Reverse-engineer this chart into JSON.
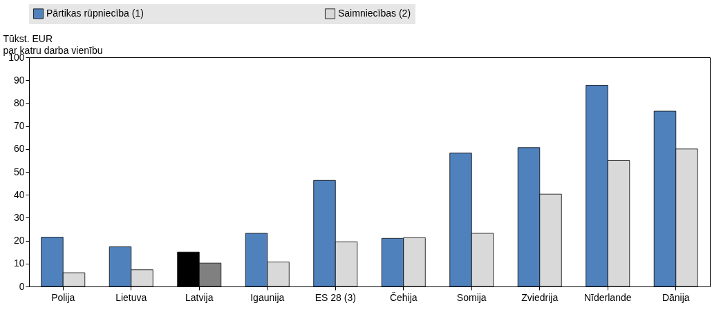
{
  "chart_data": {
    "type": "bar",
    "ylabel": "Tūkst. EUR\npar katru darba vienību",
    "categories": [
      "Polija",
      "Lietuva",
      "Latvija",
      "Igaunija",
      "ES 28 (3)",
      "Čehija",
      "Somija",
      "Zviedrija",
      "Nīderlande",
      "Dānija"
    ],
    "series": [
      {
        "name": "Pārtikas rūpniecība (1)",
        "color": "#4f81bd",
        "colors": [
          "#4f81bd",
          "#4f81bd",
          "#000000",
          "#4f81bd",
          "#4f81bd",
          "#4f81bd",
          "#4f81bd",
          "#4f81bd",
          "#4f81bd",
          "#4f81bd"
        ],
        "values": [
          21.5,
          17.3,
          15,
          23.2,
          46.3,
          21,
          58.2,
          60.6,
          87.8,
          76.5
        ]
      },
      {
        "name": "Saimniecības (2)",
        "color": "#d9d9d9",
        "colors": [
          "#d9d9d9",
          "#d9d9d9",
          "#808080",
          "#d9d9d9",
          "#d9d9d9",
          "#d9d9d9",
          "#d9d9d9",
          "#d9d9d9",
          "#d9d9d9",
          "#d9d9d9"
        ],
        "values": [
          6,
          7.3,
          10.2,
          10.7,
          19.5,
          21.3,
          23.2,
          40.3,
          55,
          60
        ]
      }
    ],
    "ylim": [
      0,
      100
    ],
    "yticks": [
      0,
      10,
      20,
      30,
      40,
      50,
      60,
      70,
      80,
      90,
      100
    ],
    "grid": false,
    "legend": "top"
  }
}
